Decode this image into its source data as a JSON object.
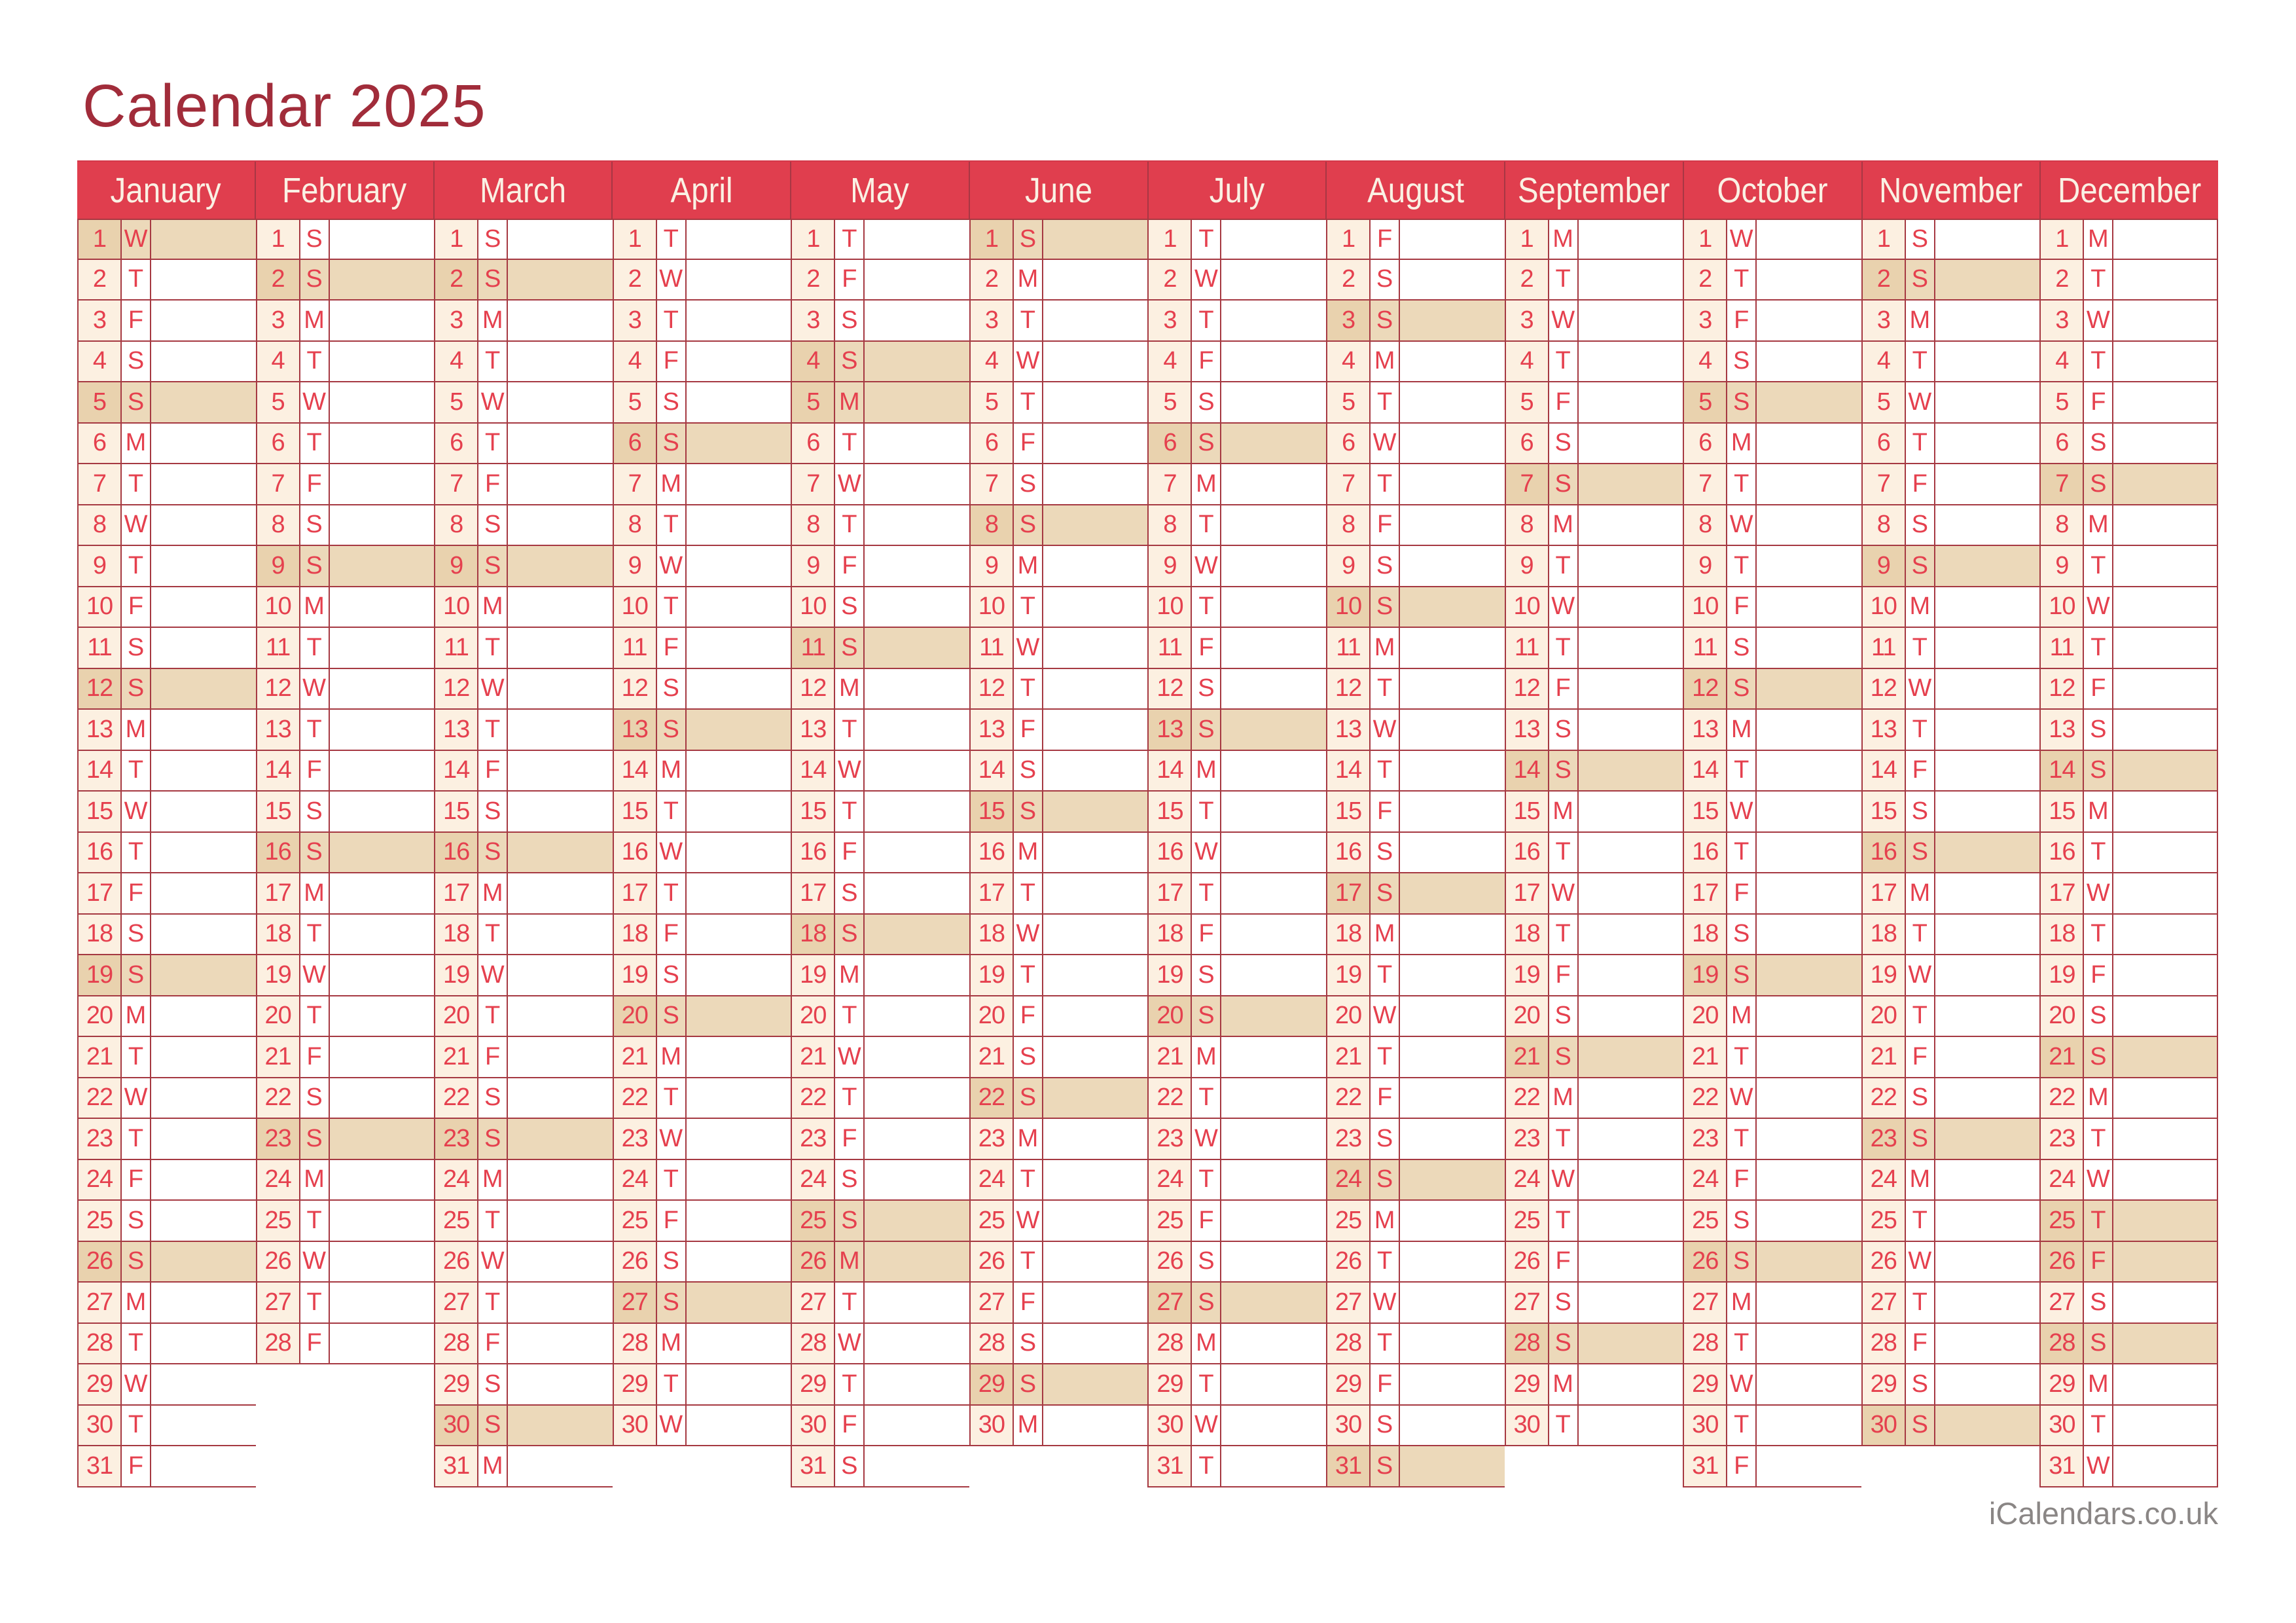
{
  "title": "Calendar 2025",
  "footer": {
    "site": "iCalendars.co.uk"
  },
  "colors": {
    "header_red": "#e03e4e",
    "header_text": "#faf1e4",
    "header_divider": "#a83744",
    "header_top_edge": "#d4394a",
    "day_text_red": "#e5404e",
    "grid_border": "#a63942",
    "number_cell_cream": "#fcf0e1",
    "highlight_wheat": "#ecd9ba",
    "highlight_number_cell": "#e9d2ae",
    "title_maroon": "#a12c3a",
    "footer_gray": "#8a8685",
    "page_background": "#ffffff"
  },
  "months": [
    {
      "name": "January",
      "weekdays": [
        "W",
        "T",
        "F",
        "S",
        "S",
        "M",
        "T",
        "W",
        "T",
        "F",
        "S",
        "S",
        "M",
        "T",
        "W",
        "T",
        "F",
        "S",
        "S",
        "M",
        "T",
        "W",
        "T",
        "F",
        "S",
        "S",
        "M",
        "T",
        "W",
        "T",
        "F"
      ],
      "highlighted": [
        1,
        5,
        12,
        19,
        26
      ]
    },
    {
      "name": "February",
      "weekdays": [
        "S",
        "S",
        "M",
        "T",
        "W",
        "T",
        "F",
        "S",
        "S",
        "M",
        "T",
        "W",
        "T",
        "F",
        "S",
        "S",
        "M",
        "T",
        "W",
        "T",
        "F",
        "S",
        "S",
        "M",
        "T",
        "W",
        "T",
        "F"
      ],
      "highlighted": [
        2,
        9,
        16,
        23
      ]
    },
    {
      "name": "March",
      "weekdays": [
        "S",
        "S",
        "M",
        "T",
        "W",
        "T",
        "F",
        "S",
        "S",
        "M",
        "T",
        "W",
        "T",
        "F",
        "S",
        "S",
        "M",
        "T",
        "W",
        "T",
        "F",
        "S",
        "S",
        "M",
        "T",
        "W",
        "T",
        "F",
        "S",
        "S",
        "M"
      ],
      "highlighted": [
        2,
        9,
        16,
        23,
        30
      ]
    },
    {
      "name": "April",
      "weekdays": [
        "T",
        "W",
        "T",
        "F",
        "S",
        "S",
        "M",
        "T",
        "W",
        "T",
        "F",
        "S",
        "S",
        "M",
        "T",
        "W",
        "T",
        "F",
        "S",
        "S",
        "M",
        "T",
        "W",
        "T",
        "F",
        "S",
        "S",
        "M",
        "T",
        "W"
      ],
      "highlighted": [
        6,
        13,
        20,
        27
      ]
    },
    {
      "name": "May",
      "weekdays": [
        "T",
        "F",
        "S",
        "S",
        "M",
        "T",
        "W",
        "T",
        "F",
        "S",
        "S",
        "M",
        "T",
        "W",
        "T",
        "F",
        "S",
        "S",
        "M",
        "T",
        "W",
        "T",
        "F",
        "S",
        "S",
        "M",
        "T",
        "W",
        "T",
        "F",
        "S"
      ],
      "highlighted": [
        4,
        5,
        11,
        18,
        25,
        26
      ]
    },
    {
      "name": "June",
      "weekdays": [
        "S",
        "M",
        "T",
        "W",
        "T",
        "F",
        "S",
        "S",
        "M",
        "T",
        "W",
        "T",
        "F",
        "S",
        "S",
        "M",
        "T",
        "W",
        "T",
        "F",
        "S",
        "S",
        "M",
        "T",
        "W",
        "T",
        "F",
        "S",
        "S",
        "M"
      ],
      "highlighted": [
        1,
        8,
        15,
        22,
        29
      ]
    },
    {
      "name": "July",
      "weekdays": [
        "T",
        "W",
        "T",
        "F",
        "S",
        "S",
        "M",
        "T",
        "W",
        "T",
        "F",
        "S",
        "S",
        "M",
        "T",
        "W",
        "T",
        "F",
        "S",
        "S",
        "M",
        "T",
        "W",
        "T",
        "F",
        "S",
        "S",
        "M",
        "T",
        "W",
        "T"
      ],
      "highlighted": [
        6,
        13,
        20,
        27
      ]
    },
    {
      "name": "August",
      "weekdays": [
        "F",
        "S",
        "S",
        "M",
        "T",
        "W",
        "T",
        "F",
        "S",
        "S",
        "M",
        "T",
        "W",
        "T",
        "F",
        "S",
        "S",
        "M",
        "T",
        "W",
        "T",
        "F",
        "S",
        "S",
        "M",
        "T",
        "W",
        "T",
        "F",
        "S",
        "S"
      ],
      "highlighted": [
        3,
        10,
        17,
        24,
        31
      ]
    },
    {
      "name": "September",
      "weekdays": [
        "M",
        "T",
        "W",
        "T",
        "F",
        "S",
        "S",
        "M",
        "T",
        "W",
        "T",
        "F",
        "S",
        "S",
        "M",
        "T",
        "W",
        "T",
        "F",
        "S",
        "S",
        "M",
        "T",
        "W",
        "T",
        "F",
        "S",
        "S",
        "M",
        "T"
      ],
      "highlighted": [
        7,
        14,
        21,
        28
      ]
    },
    {
      "name": "October",
      "weekdays": [
        "W",
        "T",
        "F",
        "S",
        "S",
        "M",
        "T",
        "W",
        "T",
        "F",
        "S",
        "S",
        "M",
        "T",
        "W",
        "T",
        "F",
        "S",
        "S",
        "M",
        "T",
        "W",
        "T",
        "F",
        "S",
        "S",
        "M",
        "T",
        "W",
        "T",
        "F"
      ],
      "highlighted": [
        5,
        12,
        19,
        26
      ]
    },
    {
      "name": "November",
      "weekdays": [
        "S",
        "S",
        "M",
        "T",
        "W",
        "T",
        "F",
        "S",
        "S",
        "M",
        "T",
        "W",
        "T",
        "F",
        "S",
        "S",
        "M",
        "T",
        "W",
        "T",
        "F",
        "S",
        "S",
        "M",
        "T",
        "W",
        "T",
        "F",
        "S",
        "S"
      ],
      "highlighted": [
        2,
        9,
        16,
        23,
        30
      ]
    },
    {
      "name": "December",
      "weekdays": [
        "M",
        "T",
        "W",
        "T",
        "F",
        "S",
        "S",
        "M",
        "T",
        "W",
        "T",
        "F",
        "S",
        "S",
        "M",
        "T",
        "W",
        "T",
        "F",
        "S",
        "S",
        "M",
        "T",
        "W",
        "T",
        "F",
        "S",
        "S",
        "M",
        "T",
        "W"
      ],
      "highlighted": [
        7,
        14,
        21,
        25,
        26,
        28
      ]
    }
  ]
}
